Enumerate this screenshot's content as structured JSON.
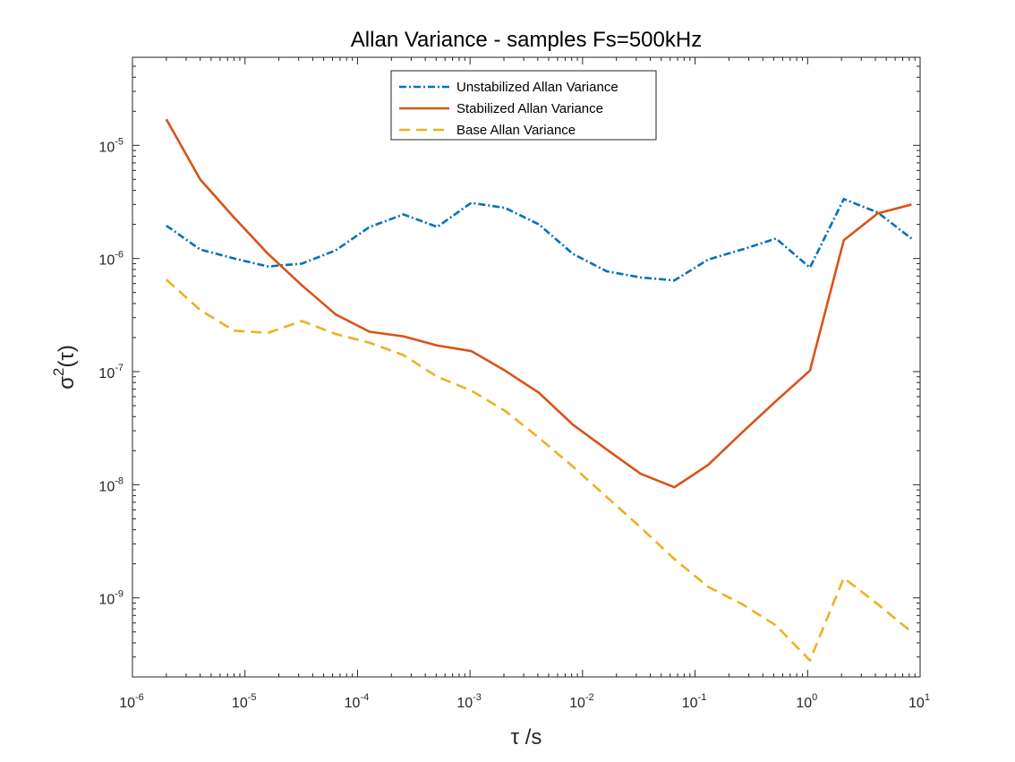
{
  "chart_data": {
    "type": "line",
    "title": "Allan Variance - samples Fs=500kHz",
    "xlabel": "τ /s",
    "ylabel_base": "σ",
    "ylabel_sup": "2",
    "ylabel_arg": "(τ)",
    "xscale": "log",
    "yscale": "log",
    "xlim": [
      1e-06,
      10
    ],
    "ylim": [
      2e-10,
      6e-05
    ],
    "x_ticks": [
      {
        "base": "10",
        "exp": "-6"
      },
      {
        "base": "10",
        "exp": "-5"
      },
      {
        "base": "10",
        "exp": "-4"
      },
      {
        "base": "10",
        "exp": "-3"
      },
      {
        "base": "10",
        "exp": "-2"
      },
      {
        "base": "10",
        "exp": "-1"
      },
      {
        "base": "10",
        "exp": "0"
      },
      {
        "base": "10",
        "exp": "1"
      }
    ],
    "x_tick_values": [
      1e-06,
      1e-05,
      0.0001,
      0.001,
      0.01,
      0.1,
      1,
      10
    ],
    "y_ticks": [
      {
        "base": "10",
        "exp": "-9"
      },
      {
        "base": "10",
        "exp": "-8"
      },
      {
        "base": "10",
        "exp": "-7"
      },
      {
        "base": "10",
        "exp": "-6"
      },
      {
        "base": "10",
        "exp": "-5"
      }
    ],
    "y_tick_values": [
      1e-09,
      1e-08,
      1e-07,
      1e-06,
      1e-05
    ],
    "grid": false,
    "legend_position": "top-center",
    "x": [
      2e-06,
      4e-06,
      8e-06,
      1.6e-05,
      3.2e-05,
      6.4e-05,
      0.000128,
      0.000256,
      0.000512,
      0.001024,
      0.002048,
      0.004096,
      0.008192,
      0.016384,
      0.032768,
      0.065536,
      0.131072,
      0.262144,
      0.524288,
      1.048576,
      2.097152,
      4.194304,
      8.388608
    ],
    "series": [
      {
        "name": "Unstabilized Allan Variance",
        "color": "#0072bd",
        "dash": "8,3,2,3",
        "values": [
          1.95e-06,
          1.2e-06,
          1e-06,
          8.5e-07,
          9e-07,
          1.18e-06,
          1.9e-06,
          2.45e-06,
          1.9e-06,
          3.1e-06,
          2.8e-06,
          2e-06,
          1.1e-06,
          7.7e-07,
          6.8e-07,
          6.4e-07,
          9.8e-07,
          1.2e-06,
          1.5e-06,
          8.3e-07,
          3.35e-06,
          2.55e-06,
          1.5e-06
        ]
      },
      {
        "name": "Stabilized Allan Variance",
        "color": "#d95319",
        "dash": "",
        "values": [
          1.7e-05,
          5e-06,
          2.3e-06,
          1.1e-06,
          5.8e-07,
          3.2e-07,
          2.25e-07,
          2.05e-07,
          1.7e-07,
          1.52e-07,
          1.02e-07,
          6.5e-08,
          3.4e-08,
          2.05e-08,
          1.25e-08,
          9.5e-09,
          1.5e-08,
          2.9e-08,
          5.5e-08,
          1.02e-07,
          1.45e-06,
          2.5e-06,
          3e-06
        ]
      },
      {
        "name": "Base Allan Variance",
        "color": "#edb120",
        "dash": "12,7",
        "values": [
          6.5e-07,
          3.5e-07,
          2.3e-07,
          2.2e-07,
          2.8e-07,
          2.15e-07,
          1.8e-07,
          1.4e-07,
          9e-08,
          6.8e-08,
          4.5e-08,
          2.6e-08,
          1.45e-08,
          7.8e-09,
          4.2e-09,
          2.2e-09,
          1.25e-09,
          8.8e-10,
          5.7e-10,
          2.8e-10,
          1.5e-09,
          8.8e-10,
          5e-10
        ]
      }
    ]
  }
}
